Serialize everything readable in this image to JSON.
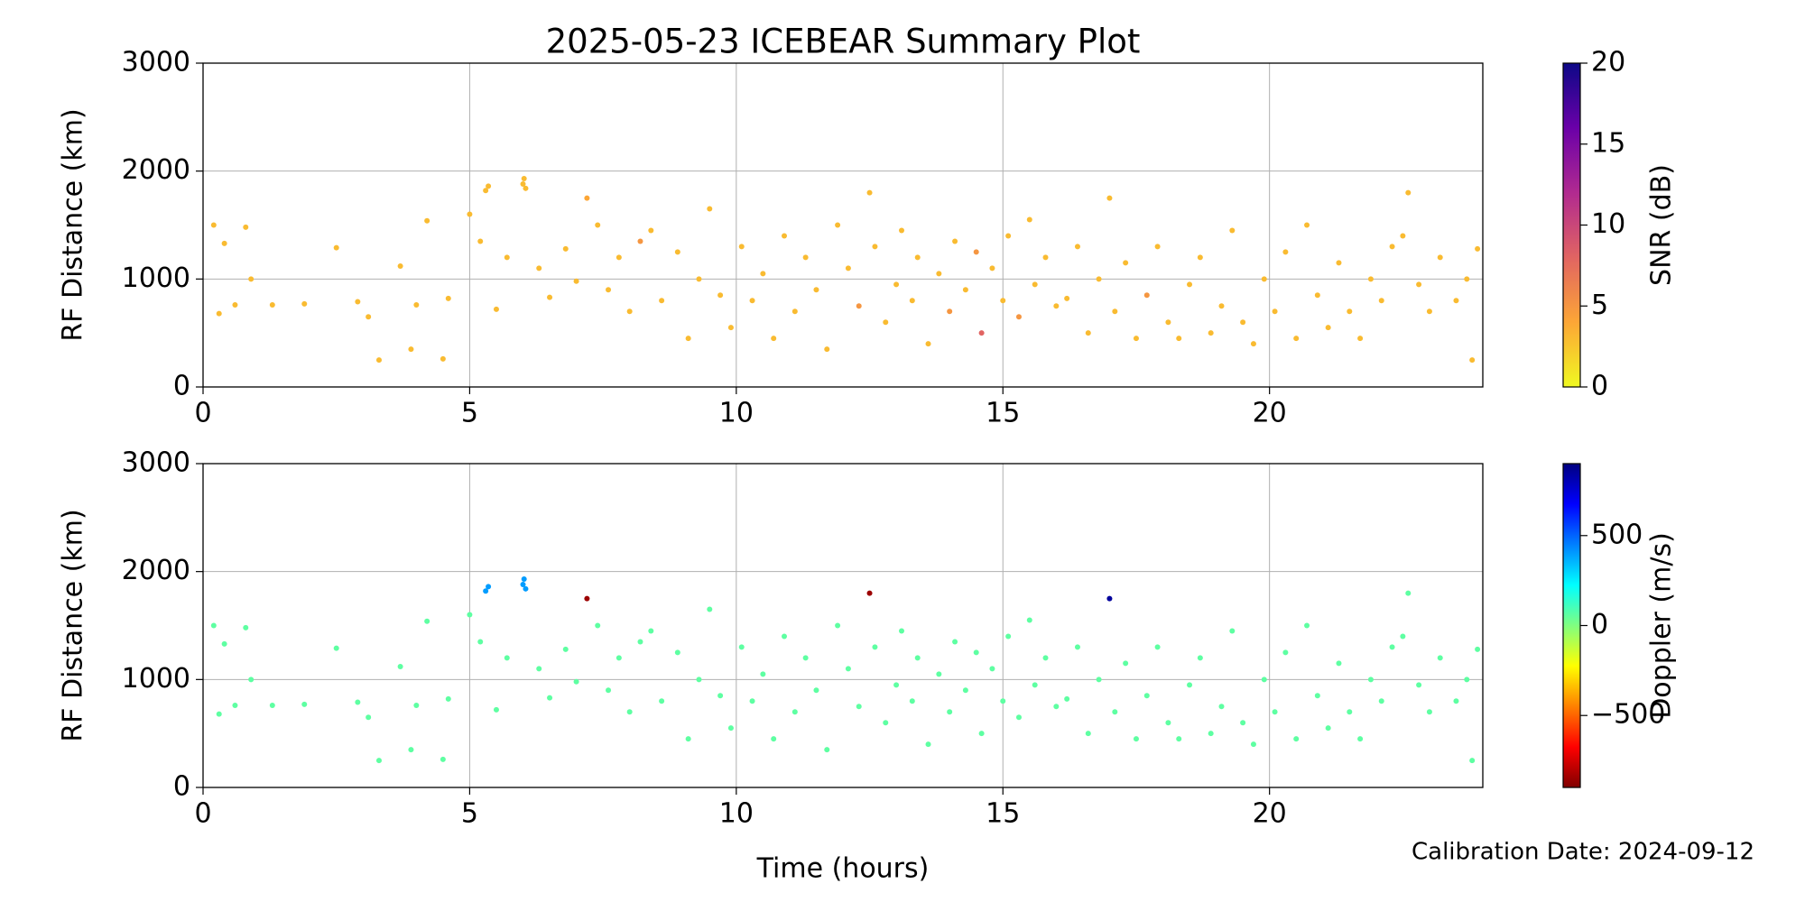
{
  "chart_data": [
    {
      "type": "scatter",
      "title": "2025-05-23 ICEBEAR Summary Plot",
      "ylabel": "RF Distance (km)",
      "xlim": [
        0,
        24
      ],
      "xticks": [
        0,
        5,
        10,
        15,
        20
      ],
      "ylim": [
        0,
        3000
      ],
      "yticks": [
        0,
        1000,
        2000,
        3000
      ],
      "grid": true,
      "x": [
        0.2,
        0.3,
        0.4,
        0.6,
        0.8,
        0.9,
        1.3,
        1.9,
        2.5,
        2.9,
        3.1,
        3.3,
        3.7,
        3.9,
        4.0,
        4.2,
        4.5,
        4.6,
        5.0,
        5.2,
        5.3,
        5.35,
        5.5,
        5.7,
        6.0,
        6.02,
        6.05,
        6.3,
        6.5,
        6.8,
        7.0,
        7.2,
        7.4,
        7.6,
        7.8,
        8.0,
        8.2,
        8.4,
        8.6,
        8.9,
        9.1,
        9.3,
        9.5,
        9.7,
        9.9,
        10.1,
        10.3,
        10.5,
        10.7,
        10.9,
        11.1,
        11.3,
        11.5,
        11.7,
        11.9,
        12.1,
        12.3,
        12.5,
        12.6,
        12.8,
        13.0,
        13.1,
        13.3,
        13.4,
        13.6,
        13.8,
        14.0,
        14.1,
        14.3,
        14.5,
        14.6,
        14.8,
        15.0,
        15.1,
        15.3,
        15.5,
        15.6,
        15.8,
        16.0,
        16.2,
        16.4,
        16.6,
        16.8,
        17.0,
        17.1,
        17.3,
        17.5,
        17.7,
        17.9,
        18.1,
        18.3,
        18.5,
        18.7,
        18.9,
        19.1,
        19.3,
        19.5,
        19.7,
        19.9,
        20.1,
        20.3,
        20.5,
        20.7,
        20.9,
        21.1,
        21.3,
        21.5,
        21.7,
        21.9,
        22.1,
        22.3,
        22.5,
        22.6,
        22.8,
        23.0,
        23.2,
        23.5,
        23.7,
        23.8,
        23.9
      ],
      "values": [
        1500,
        680,
        1330,
        760,
        1480,
        1000,
        760,
        770,
        1290,
        790,
        650,
        250,
        1120,
        350,
        760,
        1540,
        260,
        820,
        1600,
        1350,
        1820,
        1860,
        720,
        1200,
        1880,
        1930,
        1840,
        1100,
        830,
        1280,
        980,
        1750,
        1500,
        900,
        1200,
        700,
        1350,
        1450,
        800,
        1250,
        450,
        1000,
        1650,
        850,
        550,
        1300,
        800,
        1050,
        450,
        1400,
        700,
        1200,
        900,
        350,
        1500,
        1100,
        750,
        1800,
        1300,
        600,
        950,
        1450,
        800,
        1200,
        400,
        1050,
        700,
        1350,
        900,
        1250,
        500,
        1100,
        800,
        1400,
        650,
        1550,
        950,
        1200,
        750,
        820,
        1300,
        500,
        1000,
        1750,
        700,
        1150,
        450,
        850,
        1300,
        600,
        450,
        950,
        1200,
        500,
        750,
        1450,
        600,
        400,
        1000,
        700,
        1250,
        450,
        1500,
        850,
        550,
        1150,
        700,
        450,
        1000,
        800,
        1300,
        1400,
        1800,
        950,
        700,
        1200,
        800,
        1000,
        250,
        1280
      ],
      "c": [
        3,
        3,
        3,
        3,
        3,
        3,
        3,
        3,
        3,
        3,
        3,
        3,
        3,
        3,
        3,
        3,
        3,
        3,
        3,
        3,
        3,
        3,
        3,
        3,
        3,
        3,
        3,
        3,
        3,
        3,
        3,
        4,
        3,
        3,
        3,
        3,
        5,
        3,
        3,
        3,
        3,
        3,
        3,
        3,
        3,
        3,
        3,
        3,
        3,
        3,
        3,
        3,
        3,
        3,
        3,
        3,
        5,
        3,
        3,
        3,
        3,
        3,
        3,
        3,
        3,
        3,
        5,
        3,
        3,
        5,
        8,
        3,
        3,
        3,
        5,
        3,
        3,
        3,
        3,
        3,
        3,
        3,
        3,
        3,
        3,
        3,
        3,
        5,
        3,
        3,
        3,
        3,
        3,
        3,
        3,
        3,
        3,
        3,
        3,
        3,
        3,
        3,
        3,
        3,
        3,
        3,
        3,
        3,
        3,
        3,
        3,
        3,
        3,
        3,
        3,
        3,
        3,
        3,
        3,
        3
      ],
      "colorbar": {
        "label": "SNR (dB)",
        "lim": [
          0,
          20
        ],
        "ticks": [
          0,
          5,
          10,
          15,
          20
        ],
        "colors": [
          "#f0f921",
          "#fca636",
          "#e16462",
          "#b12a90",
          "#6a00a8",
          "#0d0887"
        ]
      }
    },
    {
      "type": "scatter",
      "ylabel": "RF Distance (km)",
      "xlabel": "Time (hours)",
      "annotation": "Calibration Date: 2024-09-12",
      "xlim": [
        0,
        24
      ],
      "xticks": [
        0,
        5,
        10,
        15,
        20
      ],
      "ylim": [
        0,
        3000
      ],
      "yticks": [
        0,
        1000,
        2000,
        3000
      ],
      "grid": true,
      "x": [
        0.2,
        0.3,
        0.4,
        0.6,
        0.8,
        0.9,
        1.3,
        1.9,
        2.5,
        2.9,
        3.1,
        3.3,
        3.7,
        3.9,
        4.0,
        4.2,
        4.5,
        4.6,
        5.0,
        5.2,
        5.3,
        5.35,
        5.5,
        5.7,
        6.0,
        6.02,
        6.05,
        6.3,
        6.5,
        6.8,
        7.0,
        7.2,
        7.4,
        7.6,
        7.8,
        8.0,
        8.2,
        8.4,
        8.6,
        8.9,
        9.1,
        9.3,
        9.5,
        9.7,
        9.9,
        10.1,
        10.3,
        10.5,
        10.7,
        10.9,
        11.1,
        11.3,
        11.5,
        11.7,
        11.9,
        12.1,
        12.3,
        12.5,
        12.6,
        12.8,
        13.0,
        13.1,
        13.3,
        13.4,
        13.6,
        13.8,
        14.0,
        14.1,
        14.3,
        14.5,
        14.6,
        14.8,
        15.0,
        15.1,
        15.3,
        15.5,
        15.6,
        15.8,
        16.0,
        16.2,
        16.4,
        16.6,
        16.8,
        17.0,
        17.1,
        17.3,
        17.5,
        17.7,
        17.9,
        18.1,
        18.3,
        18.5,
        18.7,
        18.9,
        19.1,
        19.3,
        19.5,
        19.7,
        19.9,
        20.1,
        20.3,
        20.5,
        20.7,
        20.9,
        21.1,
        21.3,
        21.5,
        21.7,
        21.9,
        22.1,
        22.3,
        22.5,
        22.6,
        22.8,
        23.0,
        23.2,
        23.5,
        23.7,
        23.8,
        23.9
      ],
      "values": [
        1500,
        680,
        1330,
        760,
        1480,
        1000,
        760,
        770,
        1290,
        790,
        650,
        250,
        1120,
        350,
        760,
        1540,
        260,
        820,
        1600,
        1350,
        1820,
        1860,
        720,
        1200,
        1880,
        1930,
        1840,
        1100,
        830,
        1280,
        980,
        1750,
        1500,
        900,
        1200,
        700,
        1350,
        1450,
        800,
        1250,
        450,
        1000,
        1650,
        850,
        550,
        1300,
        800,
        1050,
        450,
        1400,
        700,
        1200,
        900,
        350,
        1500,
        1100,
        750,
        1800,
        1300,
        600,
        950,
        1450,
        800,
        1200,
        400,
        1050,
        700,
        1350,
        900,
        1250,
        500,
        1100,
        800,
        1400,
        650,
        1550,
        950,
        1200,
        750,
        820,
        1300,
        500,
        1000,
        1750,
        700,
        1150,
        450,
        850,
        1300,
        600,
        450,
        950,
        1200,
        500,
        750,
        1450,
        600,
        400,
        1000,
        700,
        1250,
        450,
        1500,
        850,
        550,
        1150,
        700,
        450,
        1000,
        800,
        1300,
        1400,
        1800,
        950,
        700,
        1200,
        800,
        1000,
        250,
        1280
      ],
      "c": [
        60,
        60,
        60,
        60,
        60,
        60,
        60,
        60,
        60,
        60,
        60,
        60,
        60,
        60,
        60,
        60,
        60,
        60,
        60,
        60,
        400,
        400,
        60,
        60,
        400,
        400,
        400,
        60,
        60,
        60,
        60,
        -850,
        60,
        60,
        60,
        60,
        60,
        60,
        60,
        60,
        60,
        60,
        60,
        60,
        60,
        60,
        60,
        60,
        60,
        60,
        60,
        60,
        60,
        60,
        60,
        60,
        60,
        -850,
        60,
        60,
        60,
        60,
        60,
        60,
        60,
        60,
        60,
        60,
        60,
        60,
        60,
        60,
        60,
        60,
        60,
        60,
        60,
        60,
        60,
        60,
        60,
        60,
        60,
        850,
        60,
        60,
        60,
        60,
        60,
        60,
        60,
        60,
        60,
        60,
        60,
        60,
        60,
        60,
        60,
        60,
        60,
        60,
        60,
        60,
        60,
        60,
        60,
        60,
        60,
        60,
        60,
        60,
        60,
        60,
        60,
        60,
        60,
        60,
        60,
        60
      ],
      "colorbar": {
        "label": "Doppler (m/s)",
        "lim": [
          -900,
          900
        ],
        "ticks": [
          {
            "value": -500,
            "label": "−500"
          },
          0,
          500
        ],
        "colors": [
          "#800000",
          "#ff0000",
          "#ff8000",
          "#ffff00",
          "#80ff80",
          "#00ffff",
          "#0080ff",
          "#0000ff",
          "#000080"
        ]
      }
    }
  ]
}
